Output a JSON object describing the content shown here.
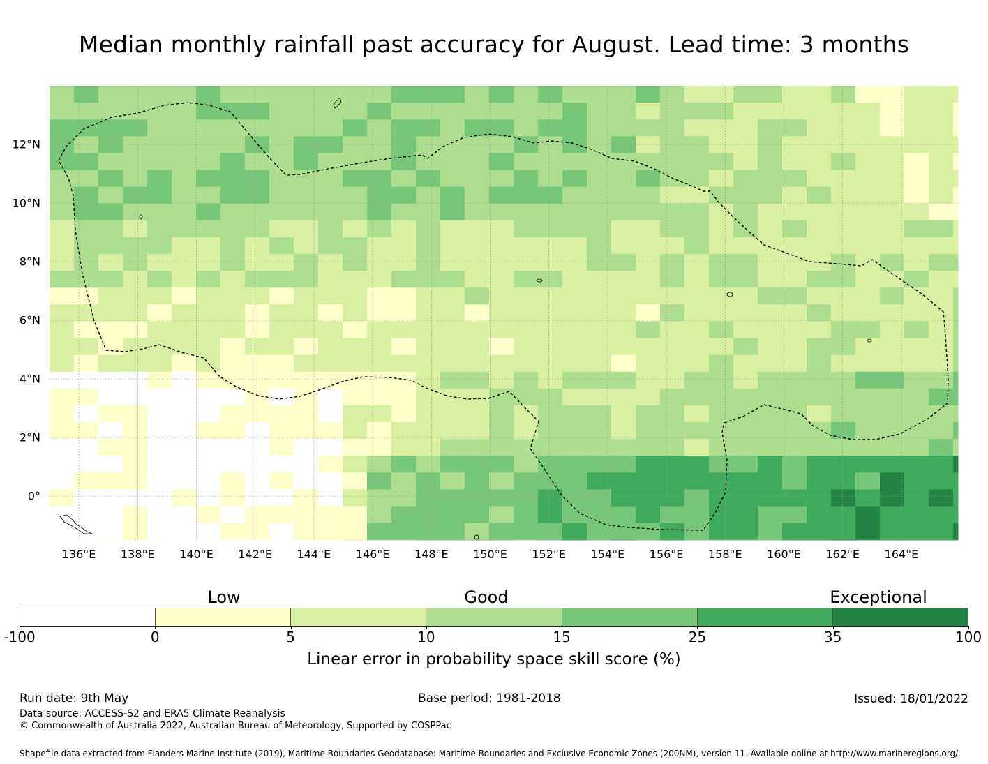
{
  "title": "Median monthly rainfall past accuracy for August. Lead time: 3 months",
  "map": {
    "lon_ticks": [
      "136°E",
      "138°E",
      "140°E",
      "142°E",
      "144°E",
      "146°E",
      "148°E",
      "150°E",
      "152°E",
      "154°E",
      "156°E",
      "158°E",
      "160°E",
      "162°E",
      "164°E"
    ],
    "lat_ticks": [
      "12°N",
      "10°N",
      "8°N",
      "6°N",
      "4°N",
      "2°N",
      "0°"
    ],
    "boundary_color": "#000000",
    "grid_color": "#999999"
  },
  "legend": {
    "categories": [
      "Low",
      "Good",
      "Exceptional"
    ],
    "tick_labels": [
      "-100",
      "0",
      "5",
      "10",
      "15",
      "25",
      "35",
      "100"
    ],
    "colors": [
      "#ffffff",
      "#ffffcc",
      "#d9f0a3",
      "#addd8e",
      "#78c679",
      "#41ab5d",
      "#238443"
    ],
    "title": "Linear error in probability space skill score (%)"
  },
  "footer": {
    "run_date": "Run date: 9th May",
    "base_period": "Base period: 1981-2018",
    "issued": "Issued: 18/01/2022",
    "data_source": "Data source: ACCESS-S2 and ERA5 Climate Reanalysis",
    "copyright": "© Commonwealth of Australia 2022, Australian Bureau of Meteorology, Supported by COSPPac",
    "shapefile": "Shapefile data extracted from Flanders Marine Institute (2019), Maritime Boundaries Geodatabase: Maritime Boundaries and Exclusive Economic Zones (200NM), version 11. Available online at http://www.marineregions.org/."
  }
}
